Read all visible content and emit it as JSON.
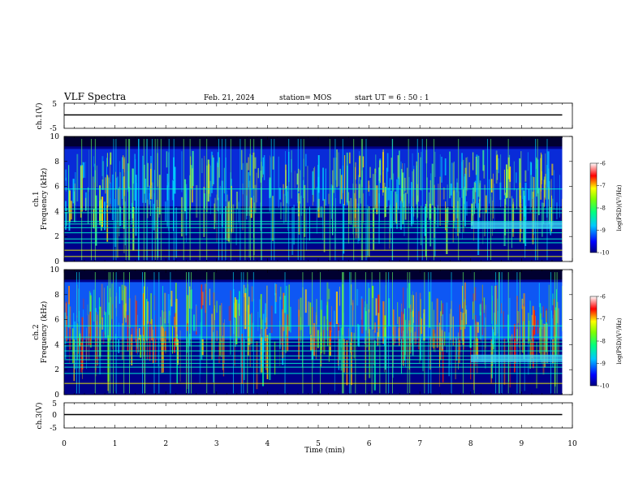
{
  "header": {
    "title": "VLF Spectra",
    "date": "Feb. 21, 2024",
    "station": "station= MOS",
    "start": "start UT =  6 : 50 : 1"
  },
  "chart_data": [
    {
      "type": "line",
      "id": "ch1-waveform",
      "ylabel": "ch.1(V)",
      "ylim": [
        -5,
        5
      ],
      "yticks": [
        5,
        -5
      ],
      "xlim": [
        0,
        10
      ],
      "series": [
        {
          "x": [
            0,
            9.8
          ],
          "y": [
            0,
            0
          ]
        }
      ]
    },
    {
      "type": "heatmap",
      "id": "ch1-spectrogram",
      "ylabel": "ch.1\nFrequency (kHz)",
      "ylim": [
        0,
        10
      ],
      "yticks": [
        0,
        2,
        4,
        6,
        8,
        10
      ],
      "xlim": [
        0,
        10
      ],
      "data_xmax": 9.8,
      "colorbar": {
        "label": "log(PSD)(V²/Hz)",
        "ticks": [
          -6,
          -7,
          -8,
          -9,
          -10
        ],
        "range": [
          -10,
          -6
        ]
      },
      "bands_khz": [
        0.4,
        0.9,
        1.5,
        1.8,
        2.3,
        2.7,
        3.0,
        3.2,
        3.9,
        4.2,
        5.8
      ]
    },
    {
      "type": "heatmap",
      "id": "ch2-spectrogram",
      "ylabel": "ch.2\nFrequency (kHz)",
      "ylim": [
        0,
        10
      ],
      "yticks": [
        0,
        2,
        4,
        6,
        8,
        10
      ],
      "xlim": [
        0,
        10
      ],
      "data_xmax": 9.8,
      "colorbar": {
        "label": "log(PSD)(V²/Hz)",
        "ticks": [
          -6,
          -7,
          -8,
          -9,
          -10
        ],
        "range": [
          -10,
          -6
        ]
      },
      "bands_khz": [
        0.9,
        1.7,
        2.2,
        2.5,
        2.8,
        3.1,
        3.5,
        3.9,
        4.2,
        4.6,
        5.5
      ]
    },
    {
      "type": "line",
      "id": "ch3-waveform",
      "ylabel": "ch.3(V)",
      "ylim": [
        -5,
        5
      ],
      "yticks": [
        5,
        0,
        -5
      ],
      "xlim": [
        0,
        10
      ],
      "xlabel": "Time (min)",
      "xticks": [
        0,
        1,
        2,
        3,
        4,
        5,
        6,
        7,
        8,
        9,
        10
      ],
      "series": [
        {
          "x": [
            0,
            9.8
          ],
          "y": [
            0,
            0
          ]
        }
      ]
    }
  ]
}
